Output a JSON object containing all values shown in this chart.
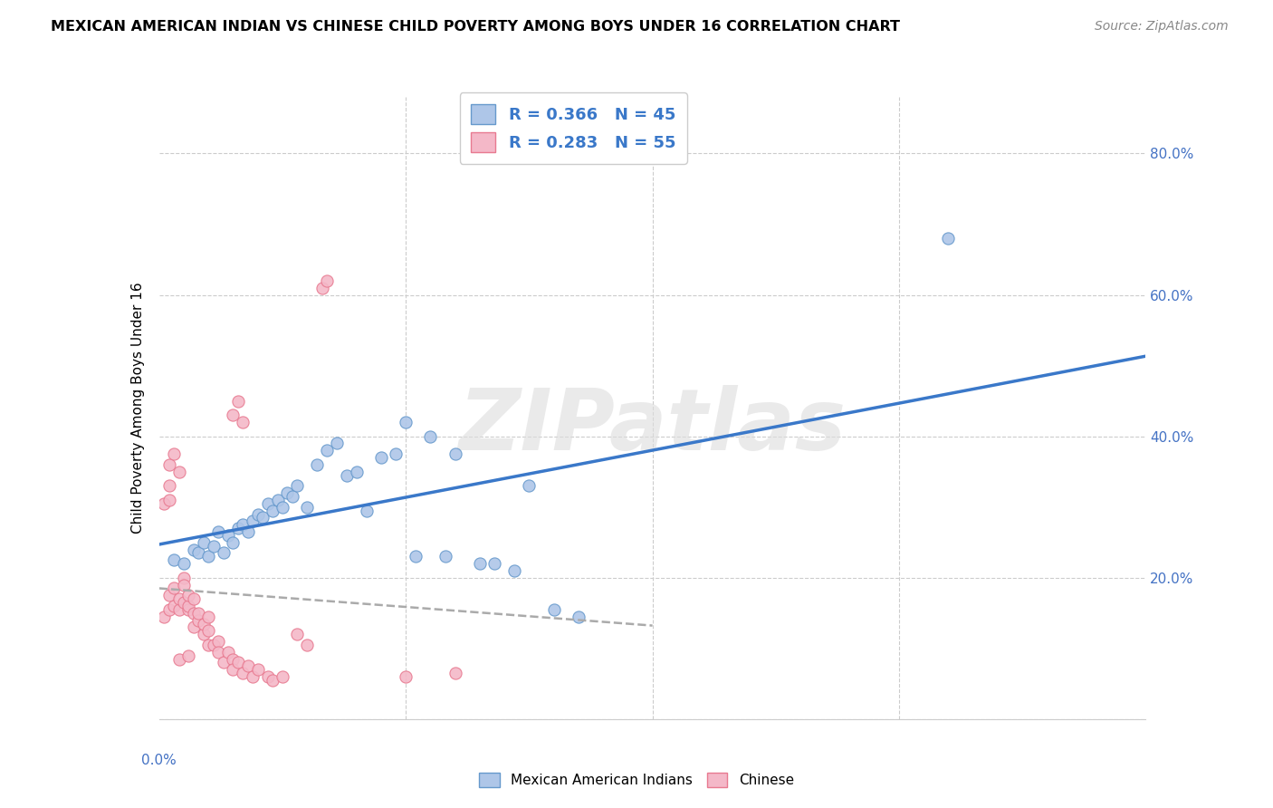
{
  "title": "MEXICAN AMERICAN INDIAN VS CHINESE CHILD POVERTY AMONG BOYS UNDER 16 CORRELATION CHART",
  "source": "Source: ZipAtlas.com",
  "ylabel": "Child Poverty Among Boys Under 16",
  "xlim": [
    0.0,
    0.2
  ],
  "ylim": [
    0.0,
    0.88
  ],
  "legend_r1": "R = 0.366",
  "legend_n1": "N = 45",
  "legend_r2": "R = 0.283",
  "legend_n2": "N = 55",
  "blue_color": "#aec6e8",
  "blue_edge_color": "#6699cc",
  "blue_line_color": "#3a78c9",
  "pink_color": "#f4b8c8",
  "pink_edge_color": "#e87a90",
  "pink_line_color": "#e05a7a",
  "dashed_line_color": "#aaaaaa",
  "watermark": "ZIPatlas",
  "background_color": "#ffffff",
  "grid_color": "#cccccc",
  "blue_scatter": [
    [
      0.003,
      0.225
    ],
    [
      0.005,
      0.22
    ],
    [
      0.007,
      0.24
    ],
    [
      0.008,
      0.235
    ],
    [
      0.009,
      0.25
    ],
    [
      0.01,
      0.23
    ],
    [
      0.011,
      0.245
    ],
    [
      0.012,
      0.265
    ],
    [
      0.013,
      0.235
    ],
    [
      0.014,
      0.26
    ],
    [
      0.015,
      0.25
    ],
    [
      0.016,
      0.27
    ],
    [
      0.017,
      0.275
    ],
    [
      0.018,
      0.265
    ],
    [
      0.019,
      0.28
    ],
    [
      0.02,
      0.29
    ],
    [
      0.021,
      0.285
    ],
    [
      0.022,
      0.305
    ],
    [
      0.023,
      0.295
    ],
    [
      0.024,
      0.31
    ],
    [
      0.025,
      0.3
    ],
    [
      0.026,
      0.32
    ],
    [
      0.027,
      0.315
    ],
    [
      0.028,
      0.33
    ],
    [
      0.03,
      0.3
    ],
    [
      0.032,
      0.36
    ],
    [
      0.034,
      0.38
    ],
    [
      0.036,
      0.39
    ],
    [
      0.038,
      0.345
    ],
    [
      0.04,
      0.35
    ],
    [
      0.042,
      0.295
    ],
    [
      0.045,
      0.37
    ],
    [
      0.048,
      0.375
    ],
    [
      0.05,
      0.42
    ],
    [
      0.052,
      0.23
    ],
    [
      0.055,
      0.4
    ],
    [
      0.058,
      0.23
    ],
    [
      0.06,
      0.375
    ],
    [
      0.065,
      0.22
    ],
    [
      0.068,
      0.22
    ],
    [
      0.072,
      0.21
    ],
    [
      0.08,
      0.155
    ],
    [
      0.085,
      0.145
    ],
    [
      0.16,
      0.68
    ],
    [
      0.075,
      0.33
    ]
  ],
  "pink_scatter": [
    [
      0.001,
      0.145
    ],
    [
      0.002,
      0.155
    ],
    [
      0.002,
      0.175
    ],
    [
      0.003,
      0.16
    ],
    [
      0.003,
      0.185
    ],
    [
      0.004,
      0.155
    ],
    [
      0.004,
      0.17
    ],
    [
      0.005,
      0.165
    ],
    [
      0.005,
      0.2
    ],
    [
      0.005,
      0.19
    ],
    [
      0.006,
      0.155
    ],
    [
      0.006,
      0.16
    ],
    [
      0.006,
      0.175
    ],
    [
      0.007,
      0.15
    ],
    [
      0.007,
      0.17
    ],
    [
      0.007,
      0.13
    ],
    [
      0.008,
      0.14
    ],
    [
      0.008,
      0.15
    ],
    [
      0.009,
      0.12
    ],
    [
      0.009,
      0.135
    ],
    [
      0.01,
      0.125
    ],
    [
      0.01,
      0.145
    ],
    [
      0.01,
      0.105
    ],
    [
      0.011,
      0.105
    ],
    [
      0.012,
      0.11
    ],
    [
      0.012,
      0.095
    ],
    [
      0.013,
      0.08
    ],
    [
      0.014,
      0.095
    ],
    [
      0.015,
      0.085
    ],
    [
      0.015,
      0.07
    ],
    [
      0.016,
      0.08
    ],
    [
      0.017,
      0.065
    ],
    [
      0.018,
      0.075
    ],
    [
      0.019,
      0.06
    ],
    [
      0.02,
      0.07
    ],
    [
      0.022,
      0.06
    ],
    [
      0.023,
      0.055
    ],
    [
      0.025,
      0.06
    ],
    [
      0.028,
      0.12
    ],
    [
      0.03,
      0.105
    ],
    [
      0.033,
      0.61
    ],
    [
      0.034,
      0.62
    ],
    [
      0.015,
      0.43
    ],
    [
      0.016,
      0.45
    ],
    [
      0.017,
      0.42
    ],
    [
      0.002,
      0.36
    ],
    [
      0.003,
      0.375
    ],
    [
      0.004,
      0.35
    ],
    [
      0.002,
      0.33
    ],
    [
      0.001,
      0.305
    ],
    [
      0.002,
      0.31
    ],
    [
      0.004,
      0.085
    ],
    [
      0.006,
      0.09
    ],
    [
      0.05,
      0.06
    ],
    [
      0.06,
      0.065
    ]
  ]
}
